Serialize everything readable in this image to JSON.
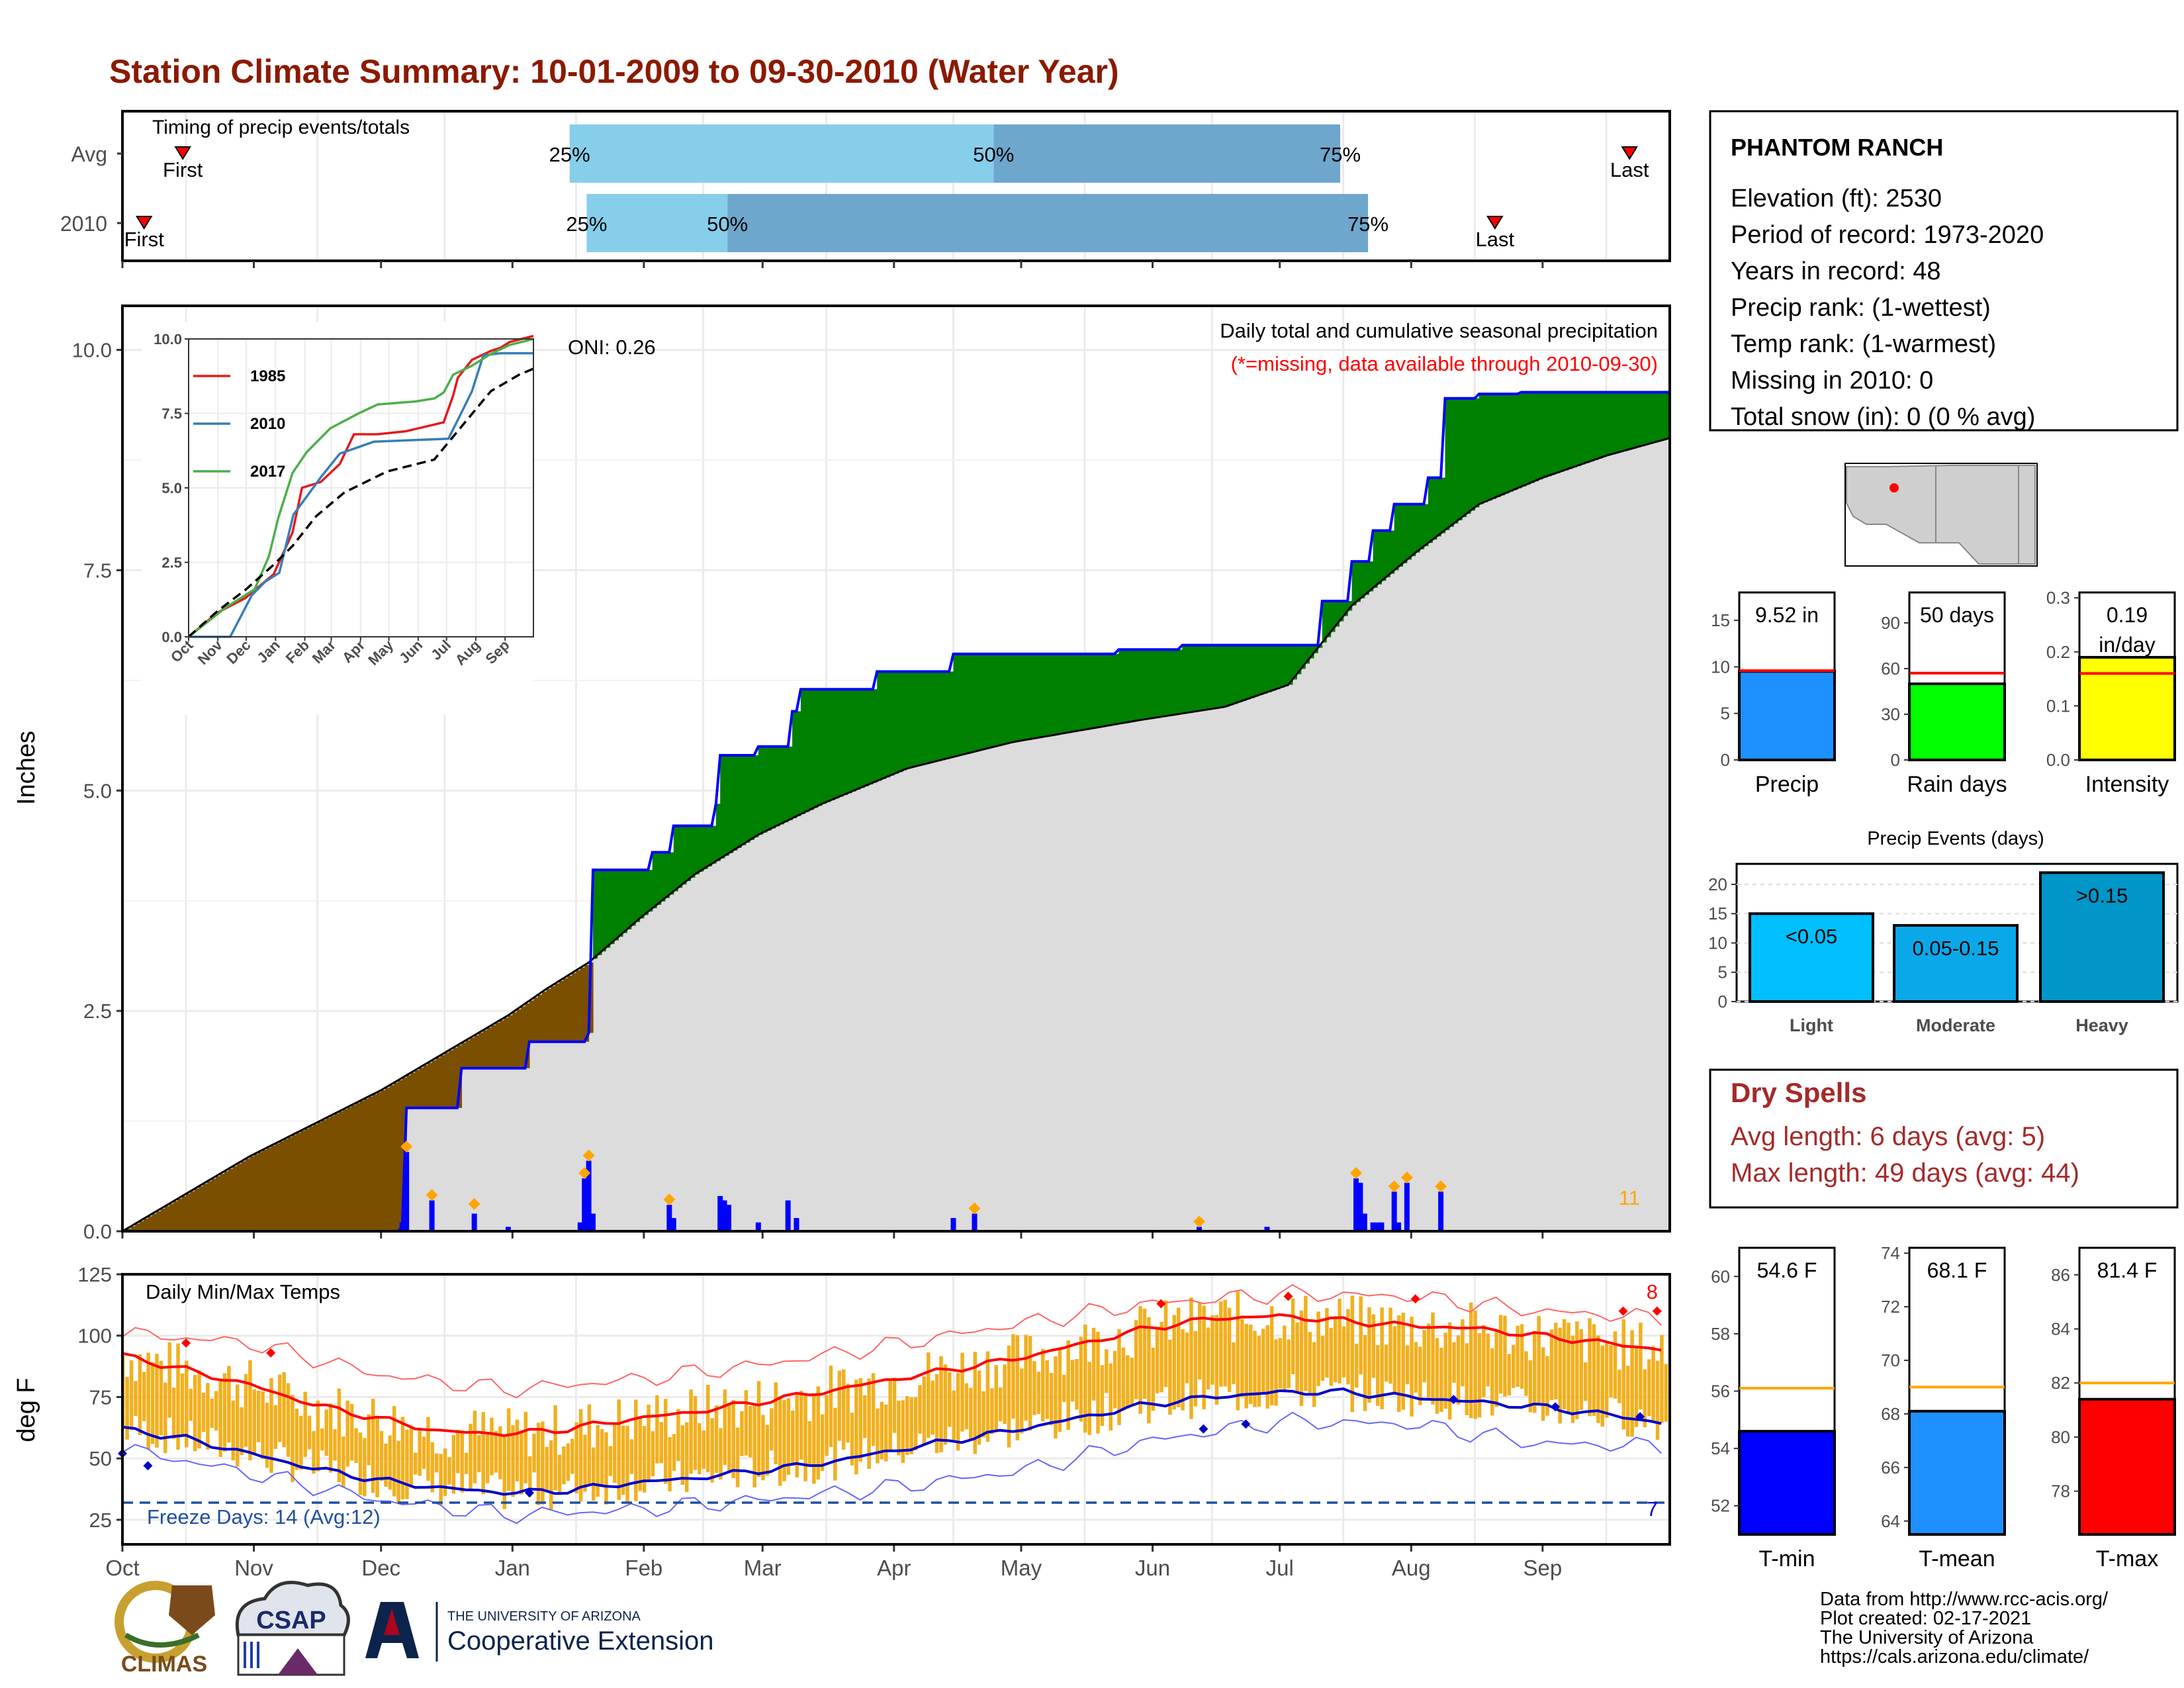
{
  "title": "Station Climate Summary: 10-01-2009 to 09-30-2010 (Water Year)",
  "station": {
    "name": "PHANTOM RANCH",
    "lines": [
      "Elevation (ft): 2530",
      "Period of record: 1973-2020",
      "Years in record: 48",
      "Precip rank:  (1-wettest)",
      "Temp rank:  (1-warmest)",
      "Missing in 2010: 0",
      "Total snow (in): 0 (0 % avg)"
    ]
  },
  "months": [
    "Oct",
    "Nov",
    "Dec",
    "Jan",
    "Feb",
    "Mar",
    "Apr",
    "May",
    "Jun",
    "Jul",
    "Aug",
    "Sep"
  ],
  "colors": {
    "title": "#8B1A00",
    "cum_base": "#dcdcdc",
    "above": "#008000",
    "below": "#7a4f00",
    "bars": "#0000ff",
    "tmax": "#ff0000",
    "tmin": "#0000cc",
    "range": "#f0b020",
    "freeze": "#1f4fa0",
    "light_blue": "#87ceeb",
    "mid_blue": "#6fa6cc"
  },
  "timing": {
    "title": "Timing of precip events/totals",
    "rows": [
      {
        "label": "Avg",
        "first_label": "First",
        "last_label": "Last",
        "first": 0.039,
        "p25": 0.289,
        "p50": 0.563,
        "p75": 0.787,
        "last": 0.974,
        "p25_label": "25%",
        "p50_label": "50%",
        "p75_label": "75%"
      },
      {
        "label": "2010",
        "first_label": "First",
        "last_label": "Last",
        "first": 0.014,
        "p25": 0.3,
        "p50": 0.391,
        "p75": 0.805,
        "last": 0.887,
        "p25_label": "25%",
        "p50_label": "50%",
        "p75_label": "75%"
      }
    ]
  },
  "chart_data": [
    {
      "type": "area",
      "title": "Daily total and cumulative seasonal precipitation",
      "subtitle": "(*=missing, data available through 2010-09-30)",
      "ylabel": "Inches",
      "ylim": [
        0,
        10.5
      ],
      "yticks": [
        "0.0",
        "2.5",
        "5.0",
        "7.5",
        "10.0"
      ],
      "oni_label": "ONI: 0.26",
      "corner_count": "11",
      "avg_cumulative": {
        "day": [
          0,
          30,
          61,
          91,
          100,
          110,
          122,
          135,
          150,
          165,
          185,
          210,
          240,
          260,
          275,
          290,
          305,
          320,
          335,
          350,
          365
        ],
        "value": [
          0,
          0.85,
          1.6,
          2.45,
          2.75,
          3.05,
          3.55,
          4.05,
          4.5,
          4.85,
          5.25,
          5.55,
          5.8,
          5.95,
          6.2,
          7.1,
          7.7,
          8.25,
          8.55,
          8.8,
          9.0
        ]
      },
      "cumulative_2010": {
        "day": [
          0,
          44,
          66,
          67,
          80,
          81,
          96,
          110,
          111,
          125,
          130,
          140,
          141,
          150,
          158,
          160,
          177,
          178,
          196,
          200,
          235,
          250,
          275,
          283,
          290,
          295,
          300,
          308,
          312,
          320,
          330,
          340,
          365
        ],
        "value": [
          0,
          0,
          0.05,
          1.4,
          1.85,
          1.85,
          2.15,
          2.25,
          4.1,
          4.3,
          4.6,
          4.85,
          5.4,
          5.5,
          5.9,
          6.15,
          6.15,
          6.35,
          6.55,
          6.55,
          6.6,
          6.65,
          6.65,
          7.15,
          7.6,
          7.95,
          8.25,
          8.55,
          9.45,
          9.5,
          9.52,
          9.52,
          9.52
        ]
      },
      "daily_bars": {
        "day": [
          66,
          67,
          73,
          83,
          91,
          108,
          109,
          110,
          111,
          129,
          130,
          141,
          142,
          143,
          150,
          157,
          159,
          196,
          201,
          254,
          270,
          291,
          292,
          293,
          295,
          296,
          297,
          300,
          301,
          303,
          311
        ],
        "value": [
          0.1,
          0.9,
          0.35,
          0.2,
          0.05,
          0.1,
          0.6,
          0.8,
          0.2,
          0.3,
          0.15,
          0.4,
          0.35,
          0.3,
          0.1,
          0.35,
          0.15,
          0.15,
          0.2,
          0.05,
          0.05,
          0.6,
          0.55,
          0.2,
          0.1,
          0.1,
          0.1,
          0.45,
          0.1,
          0.55,
          0.45
        ]
      },
      "daily_markers": {
        "day": [
          67,
          73,
          83,
          109,
          110,
          129,
          201,
          254,
          291,
          300,
          303,
          311
        ],
        "value": [
          0.9,
          0.35,
          0.25,
          0.6,
          0.8,
          0.3,
          0.2,
          0.05,
          0.6,
          0.45,
          0.55,
          0.45
        ]
      }
    },
    {
      "type": "line",
      "title": "",
      "xlabel": "",
      "ylabel": "",
      "ylim": [
        0,
        10
      ],
      "xticks": [
        "Oct",
        "Nov",
        "Dec",
        "Jan",
        "Feb",
        "Mar",
        "Apr",
        "May",
        "Jun",
        "Jul",
        "Aug",
        "Sep"
      ],
      "yticks": [
        "0.0",
        "2.5",
        "5.0",
        "7.5",
        "10.0"
      ],
      "series": [
        {
          "name": "1985",
          "color": "#e41a1c",
          "x": [
            0,
            30,
            60,
            90,
            110,
            120,
            140,
            160,
            175,
            200,
            230,
            270,
            280,
            285,
            300,
            320,
            330,
            340,
            365
          ],
          "y": [
            0,
            0.8,
            1.3,
            2.1,
            3.5,
            5.0,
            5.2,
            5.8,
            6.8,
            6.8,
            6.9,
            7.2,
            8.1,
            8.7,
            9.3,
            9.6,
            9.7,
            9.9,
            10.1
          ]
        },
        {
          "name": "2010",
          "color": "#377eb8",
          "x": [
            0,
            44,
            67,
            81,
            96,
            111,
            141,
            160,
            196,
            235,
            275,
            290,
            300,
            312,
            330,
            365
          ],
          "y": [
            0,
            0,
            1.4,
            1.85,
            2.15,
            4.1,
            5.4,
            6.15,
            6.55,
            6.6,
            6.65,
            7.6,
            8.25,
            9.45,
            9.52,
            9.52
          ]
        },
        {
          "name": "2017",
          "color": "#4daf4a",
          "x": [
            0,
            40,
            70,
            85,
            95,
            110,
            125,
            150,
            180,
            200,
            240,
            260,
            270,
            280,
            300,
            320,
            340,
            365
          ],
          "y": [
            0,
            1.0,
            1.6,
            2.7,
            4.0,
            5.5,
            6.2,
            7.0,
            7.5,
            7.8,
            7.9,
            8.0,
            8.2,
            8.8,
            9.1,
            9.5,
            9.8,
            10.0
          ]
        },
        {
          "name": "",
          "color": "#000000",
          "dash": true,
          "x": [
            0,
            30,
            61,
            91,
            110,
            135,
            165,
            210,
            260,
            290,
            320,
            350,
            365
          ],
          "y": [
            0,
            0.85,
            1.6,
            2.45,
            3.05,
            4.05,
            4.85,
            5.55,
            5.95,
            7.1,
            8.25,
            8.8,
            9.0
          ]
        }
      ]
    },
    {
      "type": "line",
      "title": "Daily Min/Max Temps",
      "ylabel": "deg F",
      "ylim": [
        15,
        125
      ],
      "yticks": [
        "25",
        "50",
        "75",
        "100",
        "125"
      ],
      "freeze_label": "Freeze Days: 14 (Avg:12)",
      "freeze_value": 32,
      "count_high": "8",
      "count_low": "7",
      "tmax_avg": {
        "day": [
          0,
          15,
          30,
          45,
          61,
          75,
          91,
          105,
          120,
          135,
          150,
          165,
          181,
          195,
          212,
          227,
          242,
          257,
          273,
          288,
          304,
          319,
          334,
          350,
          365
        ],
        "value": [
          92,
          86,
          80,
          72,
          66,
          61,
          60,
          62,
          66,
          69,
          73,
          77,
          82,
          86,
          91,
          97,
          103,
          107,
          108,
          106,
          104,
          103,
          100,
          97,
          94
        ]
      },
      "tmin_avg": {
        "day": [
          0,
          15,
          30,
          45,
          61,
          75,
          91,
          105,
          120,
          135,
          150,
          165,
          181,
          195,
          212,
          227,
          242,
          257,
          273,
          288,
          304,
          319,
          334,
          350,
          365
        ],
        "value": [
          62,
          58,
          52,
          46,
          41,
          38,
          36,
          37,
          40,
          42,
          45,
          48,
          53,
          57,
          62,
          67,
          72,
          75,
          77,
          77,
          75,
          73,
          71,
          68,
          64
        ]
      },
      "record_high": {
        "day": [
          0,
          30,
          61,
          91,
          120,
          150,
          181,
          212,
          242,
          273,
          304,
          334,
          365
        ],
        "value": [
          101,
          97,
          84,
          78,
          82,
          88,
          96,
          105,
          113,
          117,
          116,
          110,
          107
        ]
      },
      "record_low": {
        "day": [
          0,
          30,
          61,
          91,
          120,
          150,
          181,
          212,
          242,
          273,
          304,
          334,
          365
        ],
        "value": [
          54,
          44,
          33,
          27,
          29,
          33,
          38,
          45,
          57,
          65,
          64,
          56,
          55
        ]
      }
    },
    {
      "type": "bar",
      "categories": [
        "Precip",
        "Rain days",
        "Intensity"
      ],
      "value_labels": [
        "9.52 in",
        "50 days",
        "0.19 in/day"
      ],
      "values": [
        9.52,
        50,
        0.19
      ],
      "averages": [
        9.6,
        57,
        0.16
      ],
      "ylims": [
        [
          0,
          18
        ],
        [
          0,
          110
        ],
        [
          0,
          0.31
        ]
      ],
      "yticks": [
        [
          "0",
          "5",
          "10",
          "15"
        ],
        [
          "0",
          "30",
          "60",
          "90"
        ],
        [
          "0.0",
          "0.1",
          "0.2",
          "0.3"
        ]
      ],
      "colors": [
        "#1e90ff",
        "#00ff00",
        "#ffff00"
      ]
    },
    {
      "type": "bar",
      "title": "Precip Events (days)",
      "categories": [
        "Light",
        "Moderate",
        "Heavy"
      ],
      "bar_labels": [
        "<0.05",
        "0.05-0.15",
        ">0.15"
      ],
      "values": [
        15,
        13,
        22
      ],
      "ylim": [
        0,
        23.5
      ],
      "yticks": [
        "0",
        "5",
        "10",
        "15",
        "20"
      ],
      "colors": [
        "#00bfff",
        "#0aa8e8",
        "#0096c8"
      ]
    },
    {
      "type": "bar",
      "categories": [
        "T-min",
        "T-mean",
        "T-max"
      ],
      "value_labels": [
        "54.6 F",
        "68.1 F",
        "81.4 F"
      ],
      "values": [
        54.6,
        68.1,
        81.4
      ],
      "averages": [
        56.1,
        69.0,
        82.0
      ],
      "ylims": [
        [
          51,
          61
        ],
        [
          63.5,
          74.2
        ],
        [
          76.4,
          87
        ]
      ],
      "yticks": [
        [
          "52",
          "54",
          "56",
          "58",
          "60"
        ],
        [
          "64",
          "66",
          "68",
          "70",
          "72",
          "74"
        ],
        [
          "78",
          "80",
          "82",
          "84",
          "86"
        ]
      ],
      "colors": [
        "#0000ff",
        "#1e90ff",
        "#ff0000"
      ]
    }
  ],
  "dry_spells": {
    "title": "Dry Spells",
    "avg": "Avg length: 6 days (avg: 5)",
    "max": "Max length: 49 days (avg: 44)"
  },
  "credits": [
    "Data from http://www.rcc-acis.org/",
    "Plot created: 02-17-2021",
    "The University of Arizona",
    "https://cals.arizona.edu/climate/"
  ],
  "logos": {
    "climas": "CLIMAS",
    "csap": "CSAP",
    "ua_small": "THE UNIVERSITY OF ARIZONA",
    "ua_big": "Cooperative Extension"
  }
}
